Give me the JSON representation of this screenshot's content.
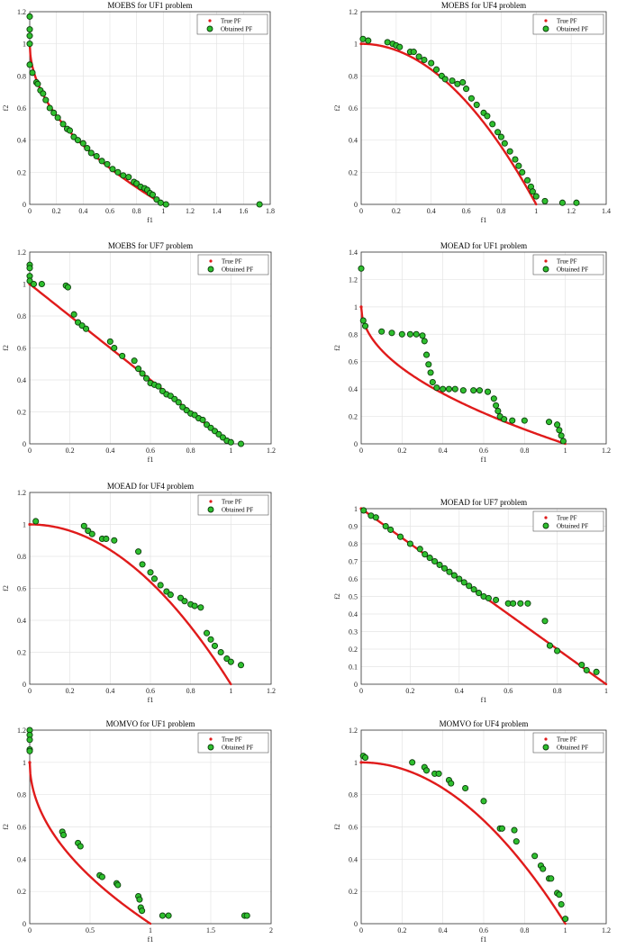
{
  "legend": {
    "true_label": "True PF",
    "obtained_label": "Obtained PF"
  },
  "colors": {
    "true_pf": "#e01b1b",
    "obtained_fill": "#2fbf2f",
    "obtained_edge": "#0b3d0b",
    "grid": "#e4e4e4",
    "axis": "#333333"
  },
  "chart_data": [
    {
      "type": "scatter",
      "title": "MOEBS for UF1 problem",
      "xlabel": "f1",
      "ylabel": "f2",
      "xlim": [
        0,
        1.8
      ],
      "ylim": [
        0,
        1.2
      ],
      "xticks": [
        "0",
        "0.2",
        "0.4",
        "0.6",
        "0.8",
        "1",
        "1.2",
        "1.4",
        "1.6",
        "1.8"
      ],
      "yticks": [
        "0",
        "0.2",
        "0.4",
        "0.6",
        "0.8",
        "1",
        "1.2"
      ],
      "true_pf": "1-sqrt(x)",
      "series": [
        {
          "name": "True PF",
          "x": [
            0,
            0.01,
            0.05,
            0.1,
            0.2,
            0.3,
            0.4,
            0.5,
            0.6,
            0.7,
            0.8,
            0.9,
            1.0
          ],
          "y": [
            1,
            0.9,
            0.776,
            0.684,
            0.553,
            0.452,
            0.368,
            0.293,
            0.225,
            0.163,
            0.106,
            0.051,
            0
          ]
        },
        {
          "name": "Obtained PF",
          "x": [
            0,
            0,
            0,
            0,
            0,
            0.02,
            0.05,
            0.06,
            0.08,
            0.1,
            0.12,
            0.15,
            0.18,
            0.21,
            0.25,
            0.28,
            0.3,
            0.33,
            0.36,
            0.4,
            0.43,
            0.46,
            0.5,
            0.54,
            0.58,
            0.62,
            0.66,
            0.7,
            0.74,
            0.78,
            0.8,
            0.83,
            0.86,
            0.88,
            0.9,
            0.92,
            0.95,
            0.98,
            1.02,
            1.72
          ],
          "y": [
            1.17,
            1.09,
            1.05,
            1.0,
            0.87,
            0.82,
            0.76,
            0.75,
            0.71,
            0.69,
            0.65,
            0.6,
            0.57,
            0.54,
            0.5,
            0.47,
            0.46,
            0.42,
            0.4,
            0.38,
            0.35,
            0.32,
            0.3,
            0.27,
            0.25,
            0.22,
            0.2,
            0.18,
            0.17,
            0.14,
            0.13,
            0.11,
            0.1,
            0.09,
            0.07,
            0.06,
            0.03,
            0.01,
            0.0,
            0.0
          ]
        }
      ]
    },
    {
      "type": "scatter",
      "title": "MOEBS for UF4 problem",
      "xlabel": "f1",
      "ylabel": "f2",
      "xlim": [
        0,
        1.4
      ],
      "ylim": [
        0,
        1.2
      ],
      "xticks": [
        "0",
        "0.2",
        "0.4",
        "0.6",
        "0.8",
        "1",
        "1.2",
        "1.4"
      ],
      "yticks": [
        "0",
        "0.2",
        "0.4",
        "0.6",
        "0.8",
        "1",
        "1.2"
      ],
      "true_pf": "1-x^2",
      "series": [
        {
          "name": "True PF",
          "x": [
            0,
            0.1,
            0.2,
            0.3,
            0.4,
            0.5,
            0.6,
            0.7,
            0.8,
            0.9,
            1.0
          ],
          "y": [
            1,
            0.99,
            0.96,
            0.91,
            0.84,
            0.75,
            0.64,
            0.51,
            0.36,
            0.19,
            0
          ]
        },
        {
          "name": "Obtained PF",
          "x": [
            0.01,
            0.04,
            0.15,
            0.18,
            0.2,
            0.22,
            0.28,
            0.3,
            0.33,
            0.36,
            0.4,
            0.43,
            0.46,
            0.48,
            0.52,
            0.55,
            0.58,
            0.6,
            0.63,
            0.66,
            0.7,
            0.72,
            0.75,
            0.78,
            0.8,
            0.82,
            0.85,
            0.88,
            0.9,
            0.92,
            0.95,
            0.97,
            0.98,
            1.0,
            1.05,
            1.15,
            1.23
          ],
          "y": [
            1.03,
            1.02,
            1.01,
            1.0,
            0.99,
            0.98,
            0.95,
            0.95,
            0.92,
            0.9,
            0.88,
            0.84,
            0.8,
            0.78,
            0.77,
            0.75,
            0.76,
            0.72,
            0.66,
            0.62,
            0.57,
            0.55,
            0.5,
            0.45,
            0.42,
            0.38,
            0.33,
            0.28,
            0.24,
            0.2,
            0.15,
            0.11,
            0.08,
            0.05,
            0.02,
            0.01,
            0.01
          ]
        }
      ]
    },
    {
      "type": "scatter",
      "title": "MOEBS for UF7 problem",
      "xlabel": "f1",
      "ylabel": "f2",
      "xlim": [
        0,
        1.2
      ],
      "ylim": [
        0,
        1.2
      ],
      "xticks": [
        "0",
        "0.2",
        "0.4",
        "0.6",
        "0.8",
        "1",
        "1.2"
      ],
      "yticks": [
        "0",
        "0.2",
        "0.4",
        "0.6",
        "0.8",
        "1",
        "1.2"
      ],
      "true_pf": "1-x",
      "series": [
        {
          "name": "True PF",
          "x": [
            0,
            1.0
          ],
          "y": [
            1,
            0
          ]
        },
        {
          "name": "Obtained PF",
          "x": [
            0,
            0,
            0,
            0,
            0.02,
            0.06,
            0.18,
            0.19,
            0.22,
            0.24,
            0.26,
            0.28,
            0.4,
            0.42,
            0.46,
            0.52,
            0.54,
            0.56,
            0.58,
            0.6,
            0.62,
            0.64,
            0.66,
            0.68,
            0.7,
            0.72,
            0.74,
            0.76,
            0.78,
            0.8,
            0.82,
            0.84,
            0.86,
            0.88,
            0.9,
            0.92,
            0.94,
            0.96,
            0.98,
            1.0,
            1.05
          ],
          "y": [
            1.12,
            1.1,
            1.05,
            1.02,
            1.0,
            1.0,
            0.99,
            0.98,
            0.81,
            0.76,
            0.74,
            0.72,
            0.64,
            0.6,
            0.55,
            0.52,
            0.47,
            0.44,
            0.41,
            0.38,
            0.37,
            0.36,
            0.33,
            0.31,
            0.3,
            0.28,
            0.26,
            0.23,
            0.21,
            0.19,
            0.18,
            0.16,
            0.15,
            0.12,
            0.1,
            0.08,
            0.06,
            0.04,
            0.02,
            0.01,
            0.0
          ]
        }
      ]
    },
    {
      "type": "scatter",
      "title": "MOEAD for UF1 problem",
      "xlabel": "f1",
      "ylabel": "f2",
      "xlim": [
        0,
        1.2
      ],
      "ylim": [
        0,
        1.4
      ],
      "xticks": [
        "0",
        "0.2",
        "0.4",
        "0.6",
        "0.8",
        "1",
        "1.2"
      ],
      "yticks": [
        "0",
        "0.2",
        "0.4",
        "0.6",
        "0.8",
        "1",
        "1.2",
        "1.4"
      ],
      "true_pf": "1-sqrt(x)",
      "series": [
        {
          "name": "True PF",
          "x": [
            0,
            0.01,
            0.05,
            0.1,
            0.2,
            0.3,
            0.4,
            0.5,
            0.6,
            0.7,
            0.8,
            0.9,
            1.0
          ],
          "y": [
            1,
            0.9,
            0.776,
            0.684,
            0.553,
            0.452,
            0.368,
            0.293,
            0.225,
            0.163,
            0.106,
            0.051,
            0
          ]
        },
        {
          "name": "Obtained PF",
          "x": [
            0,
            0.01,
            0.02,
            0.1,
            0.15,
            0.2,
            0.24,
            0.27,
            0.3,
            0.31,
            0.32,
            0.33,
            0.34,
            0.35,
            0.37,
            0.4,
            0.43,
            0.46,
            0.5,
            0.55,
            0.58,
            0.62,
            0.65,
            0.66,
            0.67,
            0.68,
            0.7,
            0.74,
            0.8,
            0.92,
            0.96,
            0.97,
            0.98,
            0.99
          ],
          "y": [
            1.28,
            0.9,
            0.86,
            0.82,
            0.81,
            0.8,
            0.8,
            0.8,
            0.79,
            0.75,
            0.65,
            0.58,
            0.52,
            0.45,
            0.41,
            0.4,
            0.4,
            0.4,
            0.39,
            0.39,
            0.39,
            0.38,
            0.33,
            0.28,
            0.24,
            0.2,
            0.18,
            0.17,
            0.17,
            0.16,
            0.14,
            0.1,
            0.06,
            0.02
          ]
        }
      ]
    },
    {
      "type": "scatter",
      "title": "MOEAD for UF4 problem",
      "xlabel": "f1",
      "ylabel": "f2",
      "xlim": [
        0,
        1.2
      ],
      "ylim": [
        0,
        1.2
      ],
      "xticks": [
        "0",
        "0.2",
        "0.4",
        "0.6",
        "0.8",
        "1",
        "1.2"
      ],
      "yticks": [
        "0",
        "0.2",
        "0.4",
        "0.6",
        "0.8",
        "1",
        "1.2"
      ],
      "true_pf": "1-x^2",
      "series": [
        {
          "name": "True PF",
          "x": [
            0,
            0.1,
            0.2,
            0.3,
            0.4,
            0.5,
            0.6,
            0.7,
            0.8,
            0.9,
            1.0
          ],
          "y": [
            1,
            0.99,
            0.96,
            0.91,
            0.84,
            0.75,
            0.64,
            0.51,
            0.36,
            0.19,
            0
          ]
        },
        {
          "name": "Obtained PF",
          "x": [
            0.03,
            0.27,
            0.29,
            0.31,
            0.36,
            0.38,
            0.42,
            0.54,
            0.56,
            0.6,
            0.62,
            0.65,
            0.68,
            0.7,
            0.75,
            0.77,
            0.8,
            0.82,
            0.85,
            0.88,
            0.9,
            0.92,
            0.95,
            0.98,
            1.0,
            1.05
          ],
          "y": [
            1.02,
            0.99,
            0.96,
            0.94,
            0.91,
            0.91,
            0.9,
            0.83,
            0.75,
            0.7,
            0.66,
            0.62,
            0.58,
            0.56,
            0.54,
            0.52,
            0.5,
            0.49,
            0.48,
            0.32,
            0.28,
            0.24,
            0.2,
            0.16,
            0.14,
            0.12
          ]
        }
      ]
    },
    {
      "type": "scatter",
      "title": "MOEAD for UF7 problem",
      "xlabel": "f1",
      "ylabel": "f2",
      "xlim": [
        0,
        1.0
      ],
      "ylim": [
        0,
        1.0
      ],
      "xticks": [
        "0",
        "0.2",
        "0.4",
        "0.6",
        "0.8",
        "1"
      ],
      "yticks": [
        "0",
        "0.1",
        "0.2",
        "0.3",
        "0.4",
        "0.5",
        "0.6",
        "0.7",
        "0.8",
        "0.9",
        "1"
      ],
      "true_pf": "1-x",
      "series": [
        {
          "name": "True PF",
          "x": [
            0,
            1.0
          ],
          "y": [
            1,
            0
          ]
        },
        {
          "name": "Obtained PF",
          "x": [
            0.01,
            0.04,
            0.06,
            0.1,
            0.12,
            0.16,
            0.2,
            0.24,
            0.26,
            0.28,
            0.3,
            0.32,
            0.34,
            0.36,
            0.38,
            0.4,
            0.42,
            0.44,
            0.46,
            0.48,
            0.5,
            0.52,
            0.55,
            0.6,
            0.62,
            0.65,
            0.68,
            0.75,
            0.77,
            0.8,
            0.9,
            0.92,
            0.96
          ],
          "y": [
            0.99,
            0.96,
            0.95,
            0.9,
            0.88,
            0.84,
            0.8,
            0.77,
            0.74,
            0.72,
            0.7,
            0.68,
            0.66,
            0.64,
            0.62,
            0.6,
            0.58,
            0.56,
            0.54,
            0.52,
            0.5,
            0.49,
            0.48,
            0.46,
            0.46,
            0.46,
            0.46,
            0.36,
            0.22,
            0.19,
            0.11,
            0.08,
            0.07
          ]
        }
      ]
    },
    {
      "type": "scatter",
      "title": "MOMVO for UF1 problem",
      "xlabel": "f1",
      "ylabel": "f2",
      "xlim": [
        0,
        2.0
      ],
      "ylim": [
        0,
        1.2
      ],
      "xticks": [
        "0",
        "0.5",
        "1",
        "1.5",
        "2"
      ],
      "yticks": [
        "0",
        "0.2",
        "0.4",
        "0.6",
        "0.8",
        "1",
        "1.2"
      ],
      "true_pf": "1-sqrt(x)",
      "series": [
        {
          "name": "True PF",
          "x": [
            0,
            0.01,
            0.05,
            0.1,
            0.2,
            0.3,
            0.4,
            0.5,
            0.6,
            0.7,
            0.8,
            0.9,
            1.0
          ],
          "y": [
            1,
            0.9,
            0.776,
            0.684,
            0.553,
            0.452,
            0.368,
            0.293,
            0.225,
            0.163,
            0.106,
            0.051,
            0
          ]
        },
        {
          "name": "Obtained PF",
          "x": [
            0,
            0,
            0,
            0,
            0,
            0.27,
            0.28,
            0.4,
            0.42,
            0.58,
            0.6,
            0.72,
            0.73,
            0.9,
            0.91,
            0.92,
            0.93,
            1.1,
            1.15,
            1.78,
            1.8
          ],
          "y": [
            1.2,
            1.17,
            1.14,
            1.08,
            1.07,
            0.57,
            0.55,
            0.5,
            0.48,
            0.3,
            0.29,
            0.25,
            0.24,
            0.17,
            0.15,
            0.1,
            0.08,
            0.05,
            0.05,
            0.05,
            0.05
          ]
        }
      ]
    },
    {
      "type": "scatter",
      "title": "MOMVO for UF4 problem",
      "xlabel": "f1",
      "ylabel": "f2",
      "xlim": [
        0,
        1.2
      ],
      "ylim": [
        0,
        1.2
      ],
      "xticks": [
        "0",
        "0.2",
        "0.4",
        "0.6",
        "0.8",
        "1",
        "1.2"
      ],
      "yticks": [
        "0",
        "0.2",
        "0.4",
        "0.6",
        "0.8",
        "1",
        "1.2"
      ],
      "true_pf": "1-x^2",
      "series": [
        {
          "name": "True PF",
          "x": [
            0,
            0.1,
            0.2,
            0.3,
            0.4,
            0.5,
            0.6,
            0.7,
            0.8,
            0.9,
            1.0
          ],
          "y": [
            1,
            0.99,
            0.96,
            0.91,
            0.84,
            0.75,
            0.64,
            0.51,
            0.36,
            0.19,
            0
          ]
        },
        {
          "name": "Obtained PF",
          "x": [
            0.01,
            0.02,
            0.25,
            0.31,
            0.32,
            0.36,
            0.38,
            0.43,
            0.44,
            0.51,
            0.6,
            0.68,
            0.69,
            0.75,
            0.76,
            0.85,
            0.88,
            0.89,
            0.92,
            0.93,
            0.96,
            0.97,
            0.98,
            1.0
          ],
          "y": [
            1.04,
            1.03,
            1.0,
            0.97,
            0.95,
            0.93,
            0.93,
            0.89,
            0.87,
            0.84,
            0.76,
            0.59,
            0.59,
            0.58,
            0.51,
            0.42,
            0.36,
            0.34,
            0.28,
            0.28,
            0.19,
            0.18,
            0.12,
            0.03
          ]
        }
      ]
    }
  ]
}
